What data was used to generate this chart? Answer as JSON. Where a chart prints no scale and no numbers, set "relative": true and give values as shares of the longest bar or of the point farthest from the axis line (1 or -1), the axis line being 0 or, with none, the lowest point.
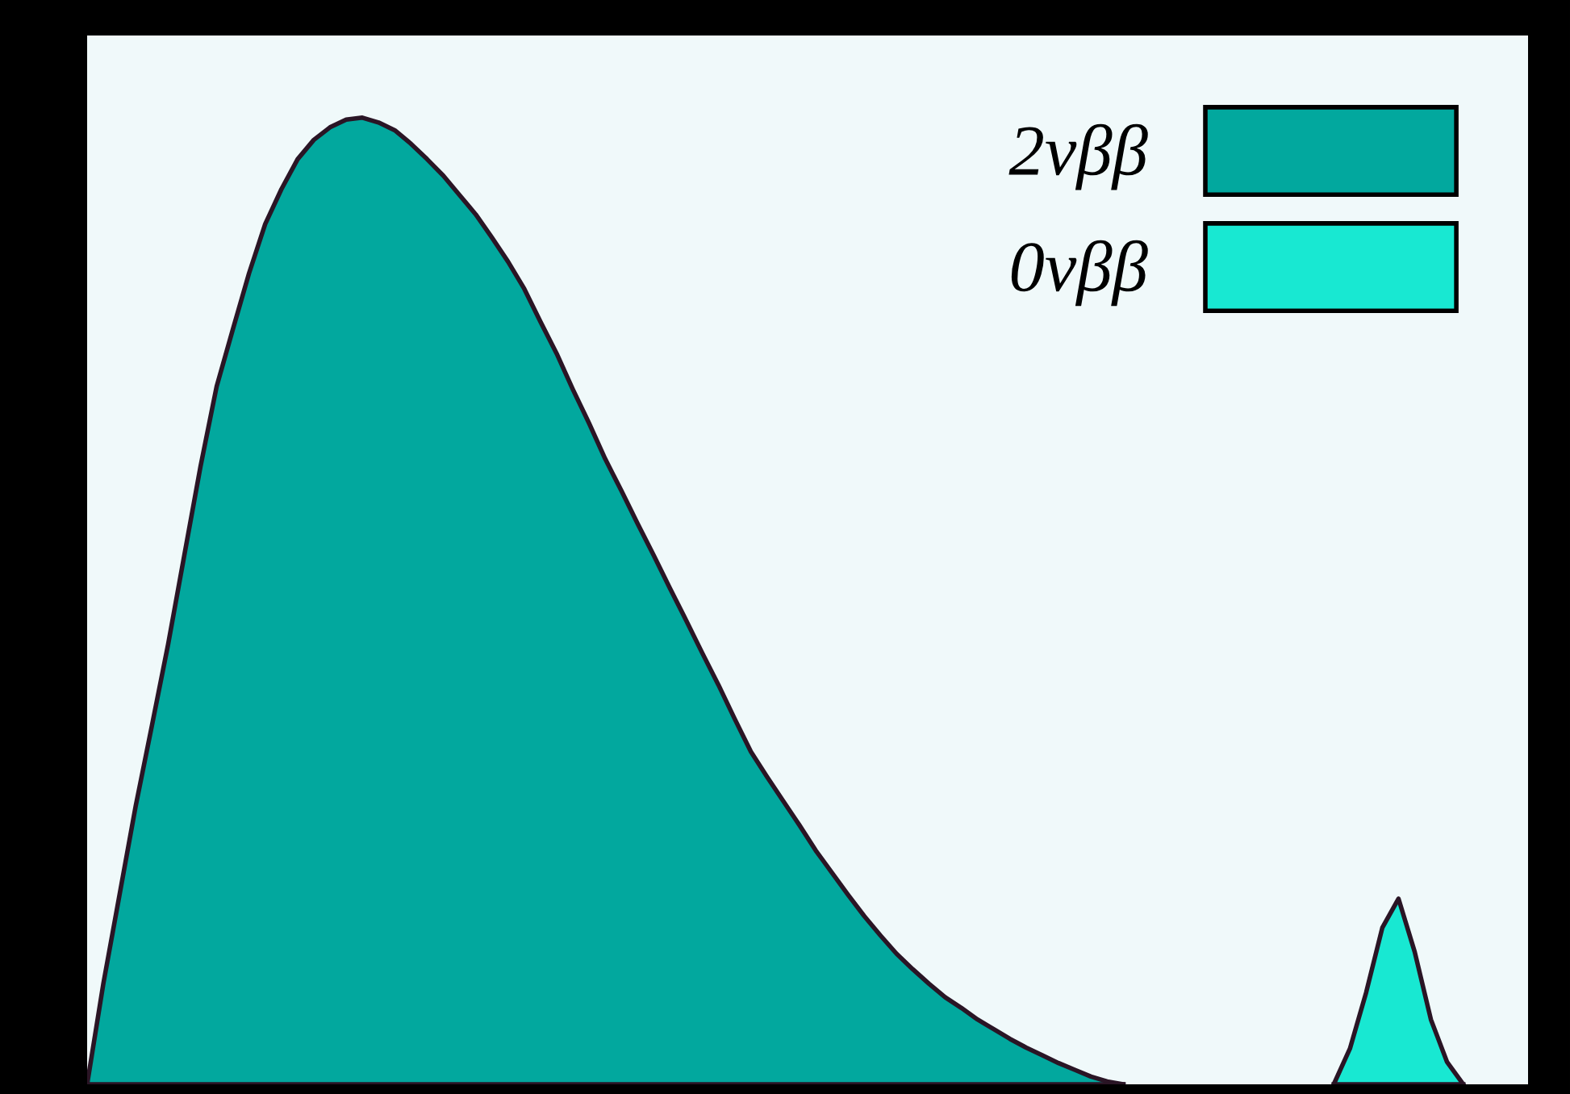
{
  "chart_data": {
    "type": "area",
    "relative": true,
    "legend": "top right",
    "categories": [
      null,
      null,
      null,
      null,
      null,
      null,
      null,
      null,
      null,
      null,
      null,
      null,
      null,
      null,
      null,
      null,
      null,
      null,
      null,
      null,
      null,
      null,
      null,
      null,
      null,
      null,
      null,
      null,
      null,
      null,
      null,
      null,
      null,
      null,
      null,
      null,
      null,
      null,
      null,
      null,
      null,
      null,
      null,
      null,
      null,
      null,
      null,
      null,
      null,
      null,
      null,
      null,
      null,
      null,
      null,
      null,
      null,
      null,
      null,
      null,
      null,
      null,
      null,
      null,
      null,
      null,
      null,
      null,
      null,
      null,
      null,
      null,
      null,
      null,
      null,
      null,
      null,
      null,
      null,
      null,
      null,
      null,
      null,
      null,
      null,
      null,
      null,
      null,
      null,
      null
    ],
    "series": [
      {
        "name": "2νββ",
        "color": "#02a89e",
        "values": [
          0,
          0.104,
          0.196,
          0.288,
          0.371,
          0.455,
          0.547,
          0.639,
          0.722,
          0.781,
          0.839,
          0.89,
          0.926,
          0.957,
          0.977,
          0.99,
          0.998,
          1,
          0.995,
          0.987,
          0.973,
          0.957,
          0.94,
          0.92,
          0.9,
          0.876,
          0.851,
          0.823,
          0.789,
          0.756,
          0.719,
          0.684,
          0.647,
          0.614,
          0.58,
          0.547,
          0.513,
          0.48,
          0.446,
          0.413,
          0.378,
          0.344,
          0.318,
          0.293,
          0.268,
          0.242,
          0.219,
          0.196,
          0.174,
          0.154,
          0.135,
          0.119,
          0.104,
          0.09,
          0.079,
          0.067,
          0.057,
          0.047,
          0.038,
          0.03,
          0.022,
          0.015,
          0.008,
          0.003,
          0,
          null,
          null,
          null,
          null,
          null,
          null,
          null,
          null,
          null,
          null,
          null,
          null,
          null,
          null,
          null,
          null,
          null,
          null,
          null,
          null,
          null,
          null,
          null,
          null,
          null
        ]
      },
      {
        "name": "0νββ",
        "color": "#18e8d2",
        "values": [
          null,
          null,
          null,
          null,
          null,
          null,
          null,
          null,
          null,
          null,
          null,
          null,
          null,
          null,
          null,
          null,
          null,
          null,
          null,
          null,
          null,
          null,
          null,
          null,
          null,
          null,
          null,
          null,
          null,
          null,
          null,
          null,
          null,
          null,
          null,
          null,
          null,
          null,
          null,
          null,
          null,
          null,
          null,
          null,
          null,
          null,
          null,
          null,
          null,
          null,
          null,
          null,
          null,
          null,
          null,
          null,
          null,
          null,
          null,
          null,
          null,
          null,
          null,
          null,
          null,
          null,
          null,
          null,
          null,
          null,
          null,
          null,
          null,
          null,
          null,
          null,
          null,
          0,
          0.037,
          0.095,
          0.162,
          0.192,
          0.137,
          0.067,
          0.023,
          0,
          null,
          null,
          null,
          null
        ]
      }
    ]
  }
}
